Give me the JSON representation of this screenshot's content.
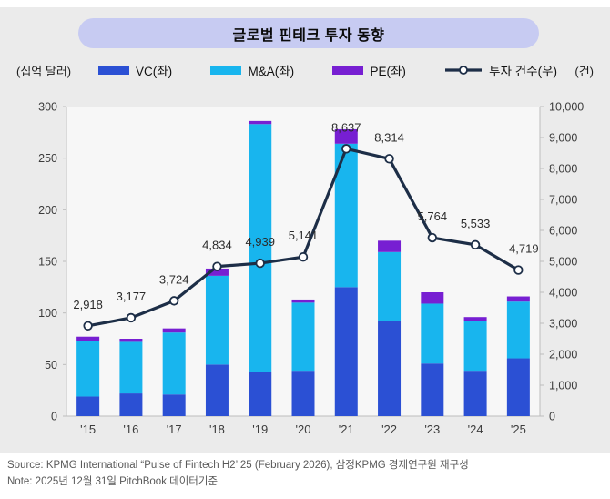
{
  "title": "글로벌 핀테크 투자 동향",
  "axis_units": {
    "left": "(십억 달러)",
    "right": "(건)"
  },
  "legend": [
    {
      "label": "VC(좌)",
      "type": "bar",
      "color": "#2b50d4"
    },
    {
      "label": "M&A(좌)",
      "type": "bar",
      "color": "#18b5ee"
    },
    {
      "label": "PE(좌)",
      "type": "bar",
      "color": "#771fd2"
    },
    {
      "label": "투자 건수(우)",
      "type": "line",
      "color": "#1d2e47"
    }
  ],
  "chart_data": {
    "type": "bar",
    "subtype": "stacked-bars-with-line",
    "title": "글로벌 핀테크 투자 동향",
    "categories": [
      "'15",
      "'16",
      "'17",
      "'18",
      "'19",
      "'20",
      "'21",
      "'22",
      "'23",
      "'24",
      "'25"
    ],
    "series": [
      {
        "name": "VC(좌)",
        "axis": "left",
        "kind": "bar",
        "color": "#2b50d4",
        "values": [
          19,
          22,
          21,
          50,
          43,
          44,
          125,
          92,
          51,
          44,
          56
        ]
      },
      {
        "name": "M&A(좌)",
        "axis": "left",
        "kind": "bar",
        "color": "#18b5ee",
        "values": [
          54,
          50,
          60,
          86,
          240,
          66,
          139,
          67,
          58,
          48,
          55
        ]
      },
      {
        "name": "PE(좌)",
        "axis": "left",
        "kind": "bar",
        "color": "#771fd2",
        "values": [
          4,
          3,
          4,
          7,
          3,
          3,
          14,
          11,
          11,
          4,
          5
        ]
      },
      {
        "name": "투자 건수(우)",
        "axis": "right",
        "kind": "line",
        "color": "#1d2e47",
        "values": [
          2918,
          3177,
          3724,
          4834,
          4939,
          5141,
          8637,
          8314,
          5764,
          5533,
          4719
        ],
        "value_labels": [
          "2,918",
          "3,177",
          "3,724",
          "4,834",
          "4,939",
          "5,141",
          "8,637",
          "8,314",
          "5,764",
          "5,533",
          "4,719"
        ]
      }
    ],
    "left_axis": {
      "label": "(십억 달러)",
      "min": 0,
      "max": 300,
      "step": 50,
      "tick_labels": [
        "0",
        "50",
        "100",
        "150",
        "200",
        "250",
        "300"
      ]
    },
    "right_axis": {
      "label": "(건)",
      "min": 0,
      "max": 10000,
      "step": 1000,
      "tick_labels": [
        "0",
        "1,000",
        "2,000",
        "3,000",
        "4,000",
        "5,000",
        "6,000",
        "7,000",
        "8,000",
        "9,000",
        "10,000"
      ]
    },
    "grid": false,
    "legend_position": "top",
    "plot_bg": "#f7f7f7",
    "axis_color": "#bcbcbc",
    "tick_text_color": "#3c3c3c",
    "label_text_color": "#2b2b2b",
    "marker": {
      "fill": "#ffffff",
      "stroke": "#1d2e47"
    }
  },
  "footer": {
    "source": "Source: KPMG International “Pulse of Fintech H2’ 25 (February 2026), 삼정KPMG 경제연구원 재구성",
    "note": "Note: 2025년 12월 31일 PitchBook 데이터기준"
  }
}
